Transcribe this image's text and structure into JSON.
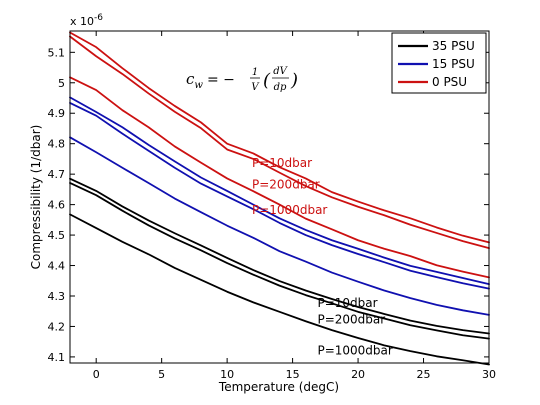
{
  "chart_data": {
    "type": "line",
    "xlabel": "Temperature (degC)",
    "ylabel": "Compressibility (1/dbar)",
    "exponent_label": "x 10",
    "exponent_value": "-6",
    "equation": {
      "lhs": "c",
      "lhs_sub": "w",
      "eq": "= −",
      "frac_num": "1",
      "frac_den": "V",
      "deriv_num": "dV",
      "deriv_den": "dp",
      "lparen": "(",
      "rparen": ")"
    },
    "xlim": [
      -2,
      30
    ],
    "ylim": [
      4.08,
      5.17
    ],
    "xticks": [
      0,
      5,
      10,
      15,
      20,
      25,
      30
    ],
    "yticks": [
      4.1,
      4.2,
      4.3,
      4.4,
      4.5,
      4.6,
      4.7,
      4.8,
      4.9,
      5.0,
      5.1
    ],
    "ytick_labels": [
      "4.1",
      "4.2",
      "4.3",
      "4.4",
      "4.5",
      "4.6",
      "4.7",
      "4.8",
      "4.9",
      "5",
      "5.1"
    ],
    "x": [
      -2,
      0,
      2,
      4,
      6,
      8,
      10,
      12,
      14,
      16,
      18,
      20,
      22,
      24,
      26,
      28,
      30
    ],
    "legend": [
      {
        "label": "35 PSU",
        "color": "#000000"
      },
      {
        "label": "15 PSU",
        "color": "#1010b0"
      },
      {
        "label": "0 PSU",
        "color": "#cc1111"
      }
    ],
    "series": [
      {
        "group": "0 PSU",
        "color": "#cc1111",
        "values": [
          5.165,
          5.117,
          5.048,
          4.983,
          4.924,
          4.87,
          4.8,
          4.768,
          4.723,
          4.686,
          4.641,
          4.61,
          4.581,
          4.555,
          4.525,
          4.498,
          4.476
        ]
      },
      {
        "group": "0 PSU",
        "color": "#cc1111",
        "values": [
          5.152,
          5.087,
          5.029,
          4.965,
          4.905,
          4.851,
          4.781,
          4.75,
          4.705,
          4.661,
          4.624,
          4.593,
          4.565,
          4.534,
          4.507,
          4.48,
          4.457
        ]
      },
      {
        "group": "0 PSU",
        "color": "#cc1111",
        "values": [
          5.018,
          4.976,
          4.91,
          4.854,
          4.791,
          4.738,
          4.686,
          4.644,
          4.6,
          4.554,
          4.519,
          4.483,
          4.455,
          4.431,
          4.401,
          4.38,
          4.361
        ]
      },
      {
        "group": "15 PSU",
        "color": "#1010b0",
        "values": [
          4.952,
          4.904,
          4.854,
          4.796,
          4.742,
          4.689,
          4.645,
          4.6,
          4.555,
          4.517,
          4.483,
          4.455,
          4.426,
          4.399,
          4.379,
          4.359,
          4.339
        ]
      },
      {
        "group": "15 PSU",
        "color": "#1010b0",
        "values": [
          4.934,
          4.892,
          4.833,
          4.777,
          4.721,
          4.669,
          4.627,
          4.585,
          4.54,
          4.5,
          4.467,
          4.438,
          4.411,
          4.383,
          4.362,
          4.342,
          4.324
        ]
      },
      {
        "group": "15 PSU",
        "color": "#1010b0",
        "values": [
          4.821,
          4.772,
          4.721,
          4.671,
          4.62,
          4.575,
          4.531,
          4.491,
          4.447,
          4.413,
          4.377,
          4.347,
          4.318,
          4.293,
          4.271,
          4.253,
          4.238
        ]
      },
      {
        "group": "35 PSU",
        "color": "#000000",
        "values": [
          4.685,
          4.645,
          4.594,
          4.548,
          4.506,
          4.466,
          4.425,
          4.385,
          4.349,
          4.318,
          4.29,
          4.264,
          4.241,
          4.219,
          4.202,
          4.188,
          4.177
        ]
      },
      {
        "group": "35 PSU",
        "color": "#000000",
        "values": [
          4.671,
          4.631,
          4.58,
          4.532,
          4.489,
          4.45,
          4.408,
          4.37,
          4.334,
          4.303,
          4.276,
          4.248,
          4.226,
          4.204,
          4.187,
          4.171,
          4.16
        ]
      },
      {
        "group": "35 PSU",
        "color": "#000000",
        "values": [
          4.568,
          4.523,
          4.478,
          4.437,
          4.392,
          4.353,
          4.314,
          4.279,
          4.248,
          4.217,
          4.188,
          4.162,
          4.138,
          4.119,
          4.102,
          4.089,
          4.075
        ]
      }
    ],
    "annotations": [
      {
        "text": "P=10dbar",
        "x": 11.9,
        "y": 4.724,
        "color": "#cc1111"
      },
      {
        "text": "P=200dbar",
        "x": 11.9,
        "y": 4.653,
        "color": "#cc1111"
      },
      {
        "text": "P=1000dbar",
        "x": 11.9,
        "y": 4.569,
        "color": "#cc1111"
      },
      {
        "text": "P=10dbar",
        "x": 16.9,
        "y": 4.264,
        "color": "#000000"
      },
      {
        "text": "P=200dbar",
        "x": 16.9,
        "y": 4.21,
        "color": "#000000"
      },
      {
        "text": "P=1000dbar",
        "x": 16.9,
        "y": 4.108,
        "color": "#000000"
      }
    ]
  }
}
